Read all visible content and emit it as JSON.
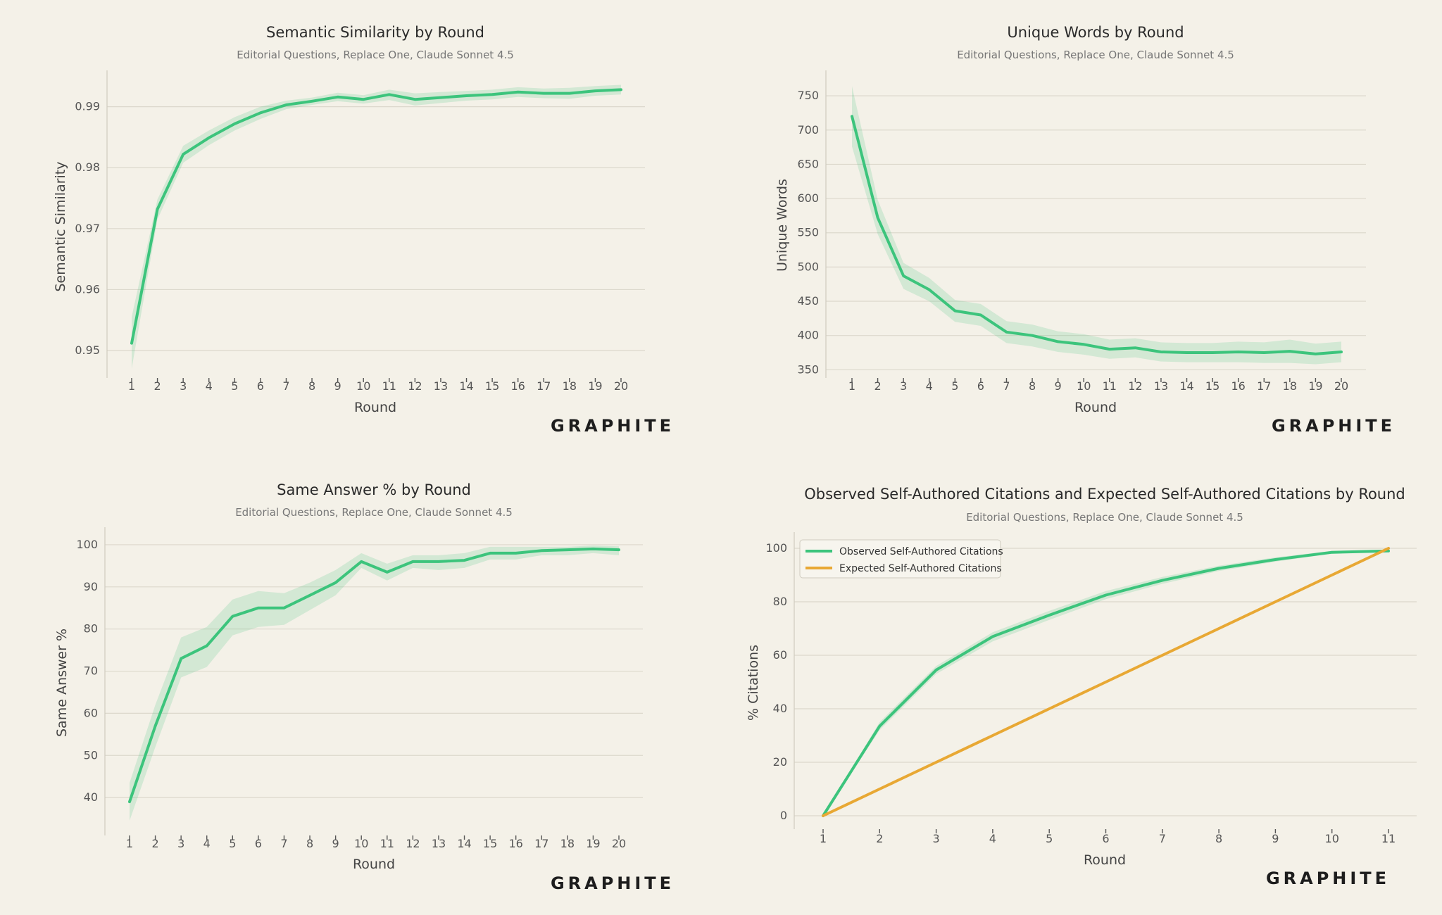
{
  "brand": "GRAPHITE",
  "colors": {
    "green": "#3cc47c",
    "orange": "#e8a834",
    "band": "#3cc47c"
  },
  "chart_data": [
    {
      "type": "line",
      "title": "Semantic Similarity by Round",
      "subtitle": "Editorial Questions, Replace One, Claude Sonnet 4.5",
      "xlabel": "Round",
      "ylabel": "Semantic Similarity",
      "x": [
        1,
        2,
        3,
        4,
        5,
        6,
        7,
        8,
        9,
        10,
        11,
        12,
        13,
        14,
        15,
        16,
        17,
        18,
        19,
        20
      ],
      "yticks": [
        0.95,
        0.96,
        0.97,
        0.98,
        0.99
      ],
      "ytick_labels": [
        "0.95",
        "0.96",
        "0.97",
        "0.98",
        "0.99"
      ],
      "ylim": [
        0.9455,
        0.9955
      ],
      "grid": true,
      "series": [
        {
          "values": [
            0.9512,
            0.9732,
            0.9822,
            0.9849,
            0.9872,
            0.989,
            0.9903,
            0.9909,
            0.9916,
            0.9912,
            0.992,
            0.9912,
            0.9915,
            0.9918,
            0.992,
            0.9924,
            0.9922,
            0.9922,
            0.9926,
            0.9928
          ],
          "lower": [
            0.947,
            0.9715,
            0.9808,
            0.9837,
            0.9861,
            0.988,
            0.9896,
            0.9903,
            0.9909,
            0.9905,
            0.9911,
            0.9902,
            0.9906,
            0.991,
            0.9912,
            0.9916,
            0.9914,
            0.9913,
            0.9918,
            0.992
          ],
          "upper": [
            0.9555,
            0.9748,
            0.9836,
            0.9861,
            0.9883,
            0.99,
            0.991,
            0.9915,
            0.9923,
            0.9919,
            0.9928,
            0.9922,
            0.9924,
            0.9926,
            0.9928,
            0.9932,
            0.993,
            0.9931,
            0.9934,
            0.9936
          ]
        }
      ]
    },
    {
      "type": "line",
      "title": "Unique Words by Round",
      "subtitle": "Editorial Questions, Replace One, Claude Sonnet 4.5",
      "xlabel": "Round",
      "ylabel": "Unique Words",
      "x": [
        1,
        2,
        3,
        4,
        5,
        6,
        7,
        8,
        9,
        10,
        11,
        12,
        13,
        14,
        15,
        16,
        17,
        18,
        19,
        20
      ],
      "yticks": [
        350,
        400,
        450,
        500,
        550,
        600,
        650,
        700,
        750
      ],
      "ytick_labels": [
        "350",
        "400",
        "450",
        "500",
        "550",
        "600",
        "650",
        "700",
        "750"
      ],
      "ylim": [
        338,
        783
      ],
      "grid": true,
      "series": [
        {
          "values": [
            720,
            572,
            487,
            467,
            436,
            430,
            405,
            400,
            391,
            387,
            380,
            382,
            376,
            375,
            375,
            376,
            375,
            377,
            373,
            376
          ],
          "lower": [
            676,
            548,
            468,
            450,
            420,
            414,
            389,
            384,
            376,
            372,
            366,
            368,
            362,
            361,
            361,
            361,
            360,
            360,
            358,
            361
          ],
          "upper": [
            764,
            598,
            506,
            484,
            452,
            446,
            421,
            416,
            406,
            402,
            394,
            396,
            390,
            389,
            389,
            391,
            390,
            394,
            388,
            391
          ]
        }
      ]
    },
    {
      "type": "line",
      "title": "Same Answer % by Round",
      "subtitle": "Editorial Questions, Replace One, Claude Sonnet 4.5",
      "xlabel": "Round",
      "ylabel": "Same Answer %",
      "x": [
        1,
        2,
        3,
        4,
        5,
        6,
        7,
        8,
        9,
        10,
        11,
        12,
        13,
        14,
        15,
        16,
        17,
        18,
        19,
        20
      ],
      "yticks": [
        40,
        50,
        60,
        70,
        80,
        90,
        100
      ],
      "ytick_labels": [
        "40",
        "50",
        "60",
        "70",
        "80",
        "90",
        "100"
      ],
      "ylim": [
        31,
        103.5
      ],
      "grid": true,
      "series": [
        {
          "values": [
            39,
            57,
            73,
            76,
            83,
            85,
            85,
            88,
            91,
            96,
            93.5,
            96,
            96,
            96.3,
            98,
            98,
            98.6,
            98.8,
            99,
            98.8
          ],
          "lower": [
            34.5,
            52,
            68.5,
            71,
            78.5,
            80.5,
            81,
            84.5,
            88,
            94.5,
            91.5,
            94.5,
            94,
            94.5,
            96.5,
            96.5,
            97.5,
            97.5,
            98,
            97.5
          ],
          "upper": [
            43.5,
            62,
            78,
            80.5,
            87,
            89,
            88.5,
            91,
            94,
            98,
            95.5,
            97.5,
            97.5,
            98,
            99.5,
            99.5,
            99.5,
            99.5,
            99.8,
            99.6
          ]
        }
      ]
    },
    {
      "type": "line",
      "title": "Observed Self-Authored Citations and Expected Self-Authored Citations by Round",
      "subtitle": "Editorial Questions, Replace One, Claude Sonnet 4.5",
      "xlabel": "Round",
      "ylabel": "% Citations",
      "x": [
        1,
        2,
        3,
        4,
        5,
        6,
        7,
        8,
        9,
        10,
        11
      ],
      "yticks": [
        0,
        20,
        40,
        60,
        80,
        100
      ],
      "ytick_labels": [
        "0",
        "20",
        "40",
        "60",
        "80",
        "100"
      ],
      "ylim": [
        -5,
        105
      ],
      "grid": true,
      "legend": "top-left",
      "series": [
        {
          "name": "Observed Self-Authored Citations",
          "values": [
            0,
            33.5,
            54.5,
            67,
            75,
            82.5,
            88,
            92.5,
            95.8,
            98.5,
            99
          ],
          "lower": [
            0,
            32,
            53,
            65.2,
            73.2,
            81,
            86.7,
            91.5,
            95,
            98,
            98.7
          ],
          "upper": [
            0,
            35,
            56,
            68.6,
            76.6,
            84,
            89.3,
            93.5,
            96.6,
            99,
            99.3
          ]
        },
        {
          "name": "Expected Self-Authored Citations",
          "values": [
            0,
            10,
            20,
            30,
            40,
            50,
            60,
            70,
            80,
            90,
            100
          ]
        }
      ]
    }
  ]
}
